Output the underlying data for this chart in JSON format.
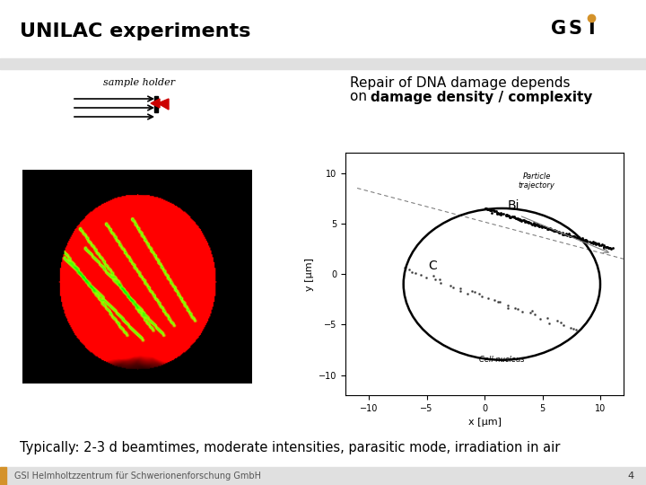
{
  "title": "UNILAC experiments",
  "title_fontsize": 16,
  "title_fontweight": "bold",
  "bg_color": "#ffffff",
  "header_bar_color": "#e0e0e0",
  "footer_bar_color": "#e0e0e0",
  "footer_orange_color": "#D4922A",
  "footer_text": "GSI Helmholtzzentrum für Schwerionenforschung GmbH",
  "footer_page": "4",
  "sample_holder_label": "sample holder",
  "repair_text_line1": "Repair of DNA damage depends",
  "repair_text_line2": "on ",
  "repair_text_bold": "damage density / complexity",
  "typically_text": "Typically: 2-3 d beamtimes, moderate intensities, parasitic mode, irradiation in air",
  "bi_label": "Bi",
  "c_label": "C",
  "gsi_logo_color": "#1a1a1a",
  "gsi_dot_color": "#D4922A"
}
